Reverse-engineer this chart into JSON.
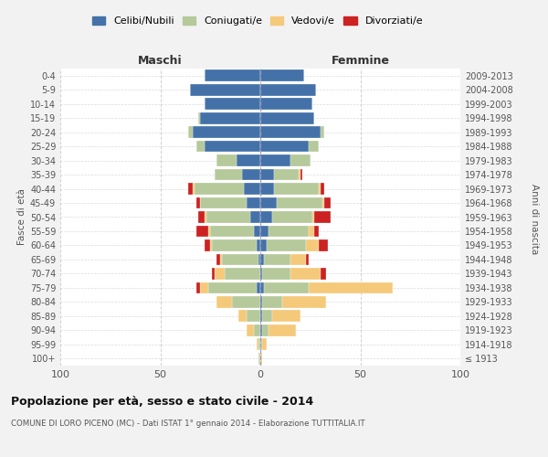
{
  "age_groups": [
    "100+",
    "95-99",
    "90-94",
    "85-89",
    "80-84",
    "75-79",
    "70-74",
    "65-69",
    "60-64",
    "55-59",
    "50-54",
    "45-49",
    "40-44",
    "35-39",
    "30-34",
    "25-29",
    "20-24",
    "15-19",
    "10-14",
    "5-9",
    "0-4"
  ],
  "birth_years": [
    "≤ 1913",
    "1914-1918",
    "1919-1923",
    "1924-1928",
    "1929-1933",
    "1934-1938",
    "1939-1943",
    "1944-1948",
    "1949-1953",
    "1954-1958",
    "1959-1963",
    "1964-1968",
    "1969-1973",
    "1974-1978",
    "1979-1983",
    "1984-1988",
    "1989-1993",
    "1994-1998",
    "1999-2003",
    "2004-2008",
    "2009-2013"
  ],
  "male": {
    "celibi": [
      0,
      0,
      0,
      0,
      0,
      2,
      0,
      1,
      2,
      3,
      5,
      7,
      8,
      9,
      12,
      28,
      34,
      30,
      28,
      35,
      28
    ],
    "coniugati": [
      1,
      1,
      3,
      7,
      14,
      24,
      18,
      18,
      22,
      22,
      22,
      23,
      25,
      14,
      10,
      4,
      2,
      1,
      0,
      0,
      0
    ],
    "vedovi": [
      0,
      1,
      4,
      4,
      8,
      4,
      5,
      1,
      1,
      1,
      1,
      0,
      1,
      0,
      0,
      0,
      0,
      0,
      0,
      0,
      0
    ],
    "divorziati": [
      0,
      0,
      0,
      0,
      0,
      2,
      1,
      2,
      3,
      6,
      3,
      2,
      2,
      0,
      0,
      0,
      0,
      0,
      0,
      0,
      0
    ]
  },
  "female": {
    "nubili": [
      0,
      0,
      1,
      1,
      1,
      2,
      1,
      2,
      3,
      4,
      6,
      8,
      7,
      7,
      15,
      24,
      30,
      27,
      26,
      28,
      22
    ],
    "coniugate": [
      0,
      1,
      3,
      5,
      10,
      22,
      14,
      13,
      20,
      20,
      20,
      23,
      22,
      12,
      10,
      5,
      2,
      0,
      0,
      0,
      0
    ],
    "vedove": [
      1,
      2,
      14,
      14,
      22,
      42,
      15,
      8,
      6,
      3,
      1,
      1,
      1,
      1,
      0,
      0,
      0,
      0,
      0,
      0,
      0
    ],
    "divorziate": [
      0,
      0,
      0,
      0,
      0,
      0,
      3,
      1,
      5,
      2,
      8,
      3,
      2,
      1,
      0,
      0,
      0,
      0,
      0,
      0,
      0
    ]
  },
  "colors": {
    "celibi": "#4472a8",
    "coniugati": "#b5c99a",
    "vedovi": "#f5c97a",
    "divorziati": "#cc2222"
  },
  "xlim": 100,
  "title": "Popolazione per età, sesso e stato civile - 2014",
  "subtitle": "COMUNE DI LORO PICENO (MC) - Dati ISTAT 1° gennaio 2014 - Elaborazione TUTTITALIA.IT",
  "ylabel_left": "Fasce di età",
  "ylabel_right": "Anni di nascita",
  "xlabel_left": "Maschi",
  "xlabel_right": "Femmine",
  "legend_labels": [
    "Celibi/Nubili",
    "Coniugati/e",
    "Vedovi/e",
    "Divorziati/e"
  ],
  "bg_color": "#f2f2f2",
  "plot_bg": "#ffffff"
}
